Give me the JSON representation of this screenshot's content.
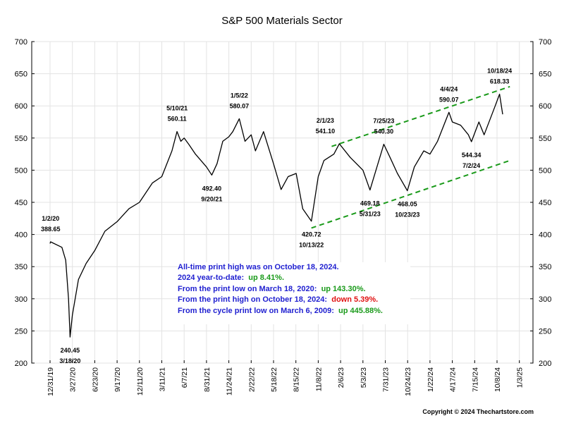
{
  "chart_data": {
    "type": "line",
    "title": "S&P 500 Materials Sector",
    "ylim": [
      200,
      700
    ],
    "y_ticks": [
      "200",
      "250",
      "300",
      "350",
      "400",
      "450",
      "500",
      "550",
      "600",
      "650",
      "700"
    ],
    "x_ticks": [
      "12/31/19",
      "3/27/20",
      "6/23/20",
      "9/17/20",
      "12/11/20",
      "3/11/21",
      "6/7/21",
      "8/31/21",
      "11/24/21",
      "2/22/22",
      "5/18/22",
      "8/15/22",
      "11/8/22",
      "2/6/23",
      "5/3/23",
      "7/31/23",
      "10/24/23",
      "1/22/24",
      "4/17/24",
      "7/15/24",
      "10/8/24",
      "1/3/25"
    ],
    "series": [
      {
        "x": [
          "12/31/19",
          "1/2/20",
          "2/15/20",
          "3/1/20",
          "3/12/20",
          "3/18/20",
          "3/27/20",
          "4/20/20",
          "5/20/20",
          "6/23/20",
          "8/1/20",
          "9/17/20",
          "11/1/20",
          "12/11/20",
          "2/1/21",
          "3/11/21",
          "4/20/21",
          "5/10/21",
          "5/25/21",
          "6/7/21",
          "6/25/21",
          "7/20/21",
          "8/31/21",
          "9/20/21",
          "10/10/21",
          "11/1/21",
          "11/24/21",
          "12/10/21",
          "1/5/22",
          "1/28/22",
          "2/22/22",
          "3/10/22",
          "4/10/22",
          "5/18/22",
          "6/17/22",
          "7/15/22",
          "8/16/22",
          "9/10/22",
          "10/13/22",
          "11/8/22",
          "12/1/22",
          "1/10/23",
          "2/1/23",
          "3/15/23",
          "5/3/23",
          "5/31/23",
          "7/25/23",
          "8/18/23",
          "9/15/23",
          "10/23/23",
          "11/20/23",
          "12/28/23",
          "1/22/24",
          "2/20/24",
          "4/4/24",
          "4/17/24",
          "5/20/24",
          "6/20/24",
          "7/2/24",
          "7/31/24",
          "8/20/24",
          "10/1/24",
          "10/18/24",
          "10/30/24"
        ],
        "values": [
          386,
          388.65,
          380,
          360,
          300,
          240.45,
          275,
          330,
          355,
          375,
          405,
          420,
          440,
          450,
          480,
          490,
          530,
          560.11,
          545,
          550,
          540,
          525,
          505,
          492.4,
          510,
          545,
          552,
          560,
          580.07,
          545,
          555,
          530,
          560,
          510,
          470,
          490,
          495,
          440,
          420.72,
          490,
          515,
          525,
          541.1,
          520,
          500,
          469.18,
          540.3,
          520,
          495,
          468.05,
          505,
          530,
          525,
          545,
          590.07,
          575,
          570,
          555,
          544.34,
          575,
          555,
          600,
          618.33,
          587
        ]
      }
    ],
    "annotations": [
      {
        "label": "1/2/20",
        "value": "388.65"
      },
      {
        "label": "3/18/20",
        "value": "240.45"
      },
      {
        "label": "5/10/21",
        "value": "560.11"
      },
      {
        "label": "9/20/21",
        "value": "492.40"
      },
      {
        "label": "1/5/22",
        "value": "580.07"
      },
      {
        "label": "10/13/22",
        "value": "420.72"
      },
      {
        "label": "2/1/23",
        "value": "541.10"
      },
      {
        "label": "5/31/23",
        "value": "469.18"
      },
      {
        "label": "7/25/23",
        "value": "540.30"
      },
      {
        "label": "10/23/23",
        "value": "468.05"
      },
      {
        "label": "4/4/24",
        "value": "590.07"
      },
      {
        "label": "7/2/24",
        "value": "544.34"
      },
      {
        "label": "10/18/24",
        "value": "618.33"
      }
    ],
    "trend_lines": [
      {
        "x": [
          "10/13/22",
          "11/27/24"
        ],
        "values": [
          410,
          515
        ],
        "color": "#1a9a1a",
        "style": "dashed"
      },
      {
        "x": [
          "1/1/23",
          "11/27/24"
        ],
        "values": [
          537,
          630
        ],
        "color": "#1a9a1a",
        "style": "dashed"
      }
    ],
    "line_color": "#000000"
  },
  "stats": {
    "line1": "All-time print high was on October 18, 2024.",
    "line2_label": "2024 year-to-date:",
    "line2_value": "up 8.41%.",
    "line3_label": "From the print low on March 18, 2020:",
    "line3_value": "up 143.30%.",
    "line4_label": "From the print high on October 18, 2024:",
    "line4_value": "down 5.39%.",
    "line5_label": "From the cycle print low on March 6, 2009:",
    "line5_value": "up 445.88%."
  },
  "copyright": "Copyright © 2024 Thechartstore.com",
  "colors": {
    "blue": "#1f1fd0",
    "green": "#1a9a1a",
    "red": "#e01010",
    "trend": "#1a9a1a"
  }
}
